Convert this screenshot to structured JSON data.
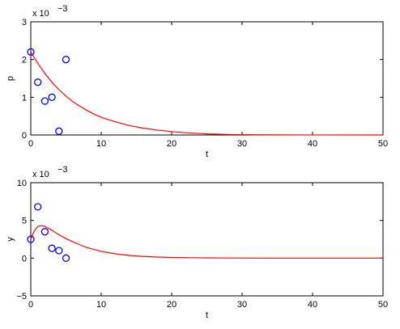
{
  "chart_data": [
    {
      "type": "line",
      "xlabel": "t",
      "ylabel": "p",
      "exponent_label": "x 10",
      "exponent": "−3",
      "xlim": [
        0,
        50
      ],
      "ylim": [
        0,
        3
      ],
      "xticks": [
        0,
        10,
        20,
        30,
        40,
        50
      ],
      "yticks": [
        0,
        1,
        2,
        3
      ],
      "color_markers": "#0000ff",
      "color_curve": "#ff0000",
      "markers": [
        {
          "x": 0,
          "y": 2.2
        },
        {
          "x": 1,
          "y": 1.4
        },
        {
          "x": 2,
          "y": 0.9
        },
        {
          "x": 3,
          "y": 1.0
        },
        {
          "x": 4,
          "y": 0.1
        },
        {
          "x": 5,
          "y": 2.0
        }
      ],
      "curve": [
        {
          "x": 0,
          "y": 2.2
        },
        {
          "x": 1,
          "y": 1.9
        },
        {
          "x": 2,
          "y": 1.63
        },
        {
          "x": 3,
          "y": 1.4
        },
        {
          "x": 4,
          "y": 1.2
        },
        {
          "x": 5,
          "y": 1.03
        },
        {
          "x": 6,
          "y": 0.88
        },
        {
          "x": 7,
          "y": 0.76
        },
        {
          "x": 8,
          "y": 0.65
        },
        {
          "x": 9,
          "y": 0.55
        },
        {
          "x": 10,
          "y": 0.47
        },
        {
          "x": 12,
          "y": 0.35
        },
        {
          "x": 14,
          "y": 0.25
        },
        {
          "x": 16,
          "y": 0.18
        },
        {
          "x": 18,
          "y": 0.13
        },
        {
          "x": 20,
          "y": 0.09
        },
        {
          "x": 22,
          "y": 0.06
        },
        {
          "x": 25,
          "y": 0.03
        },
        {
          "x": 28,
          "y": 0.015
        },
        {
          "x": 32,
          "y": 0.006
        },
        {
          "x": 36,
          "y": 0.002
        },
        {
          "x": 40,
          "y": 0.001
        },
        {
          "x": 50,
          "y": 0
        }
      ]
    },
    {
      "type": "line",
      "xlabel": "t",
      "ylabel": "y",
      "exponent_label": "x 10",
      "exponent": "−3",
      "xlim": [
        0,
        50
      ],
      "ylim": [
        -5,
        10
      ],
      "xticks": [
        0,
        10,
        20,
        30,
        40,
        50
      ],
      "yticks": [
        -5,
        0,
        5,
        10
      ],
      "color_markers": "#0000ff",
      "color_curve": "#ff0000",
      "markers": [
        {
          "x": 0,
          "y": 2.5
        },
        {
          "x": 1,
          "y": 6.8
        },
        {
          "x": 2,
          "y": 3.5
        },
        {
          "x": 3,
          "y": 1.3
        },
        {
          "x": 4,
          "y": 1.0
        },
        {
          "x": 5,
          "y": 0.0
        }
      ],
      "curve": [
        {
          "x": 0,
          "y": 2.5
        },
        {
          "x": 0.5,
          "y": 3.6
        },
        {
          "x": 1,
          "y": 4.2
        },
        {
          "x": 1.5,
          "y": 4.3
        },
        {
          "x": 2,
          "y": 4.2
        },
        {
          "x": 3,
          "y": 3.7
        },
        {
          "x": 4,
          "y": 3.1
        },
        {
          "x": 5,
          "y": 2.6
        },
        {
          "x": 6,
          "y": 2.15
        },
        {
          "x": 7,
          "y": 1.75
        },
        {
          "x": 8,
          "y": 1.4
        },
        {
          "x": 10,
          "y": 0.9
        },
        {
          "x": 12,
          "y": 0.57
        },
        {
          "x": 14,
          "y": 0.36
        },
        {
          "x": 16,
          "y": 0.22
        },
        {
          "x": 18,
          "y": 0.14
        },
        {
          "x": 20,
          "y": 0.09
        },
        {
          "x": 24,
          "y": 0.04
        },
        {
          "x": 28,
          "y": 0.015
        },
        {
          "x": 34,
          "y": 0.004
        },
        {
          "x": 40,
          "y": 0.001
        },
        {
          "x": 50,
          "y": 0
        }
      ]
    }
  ]
}
